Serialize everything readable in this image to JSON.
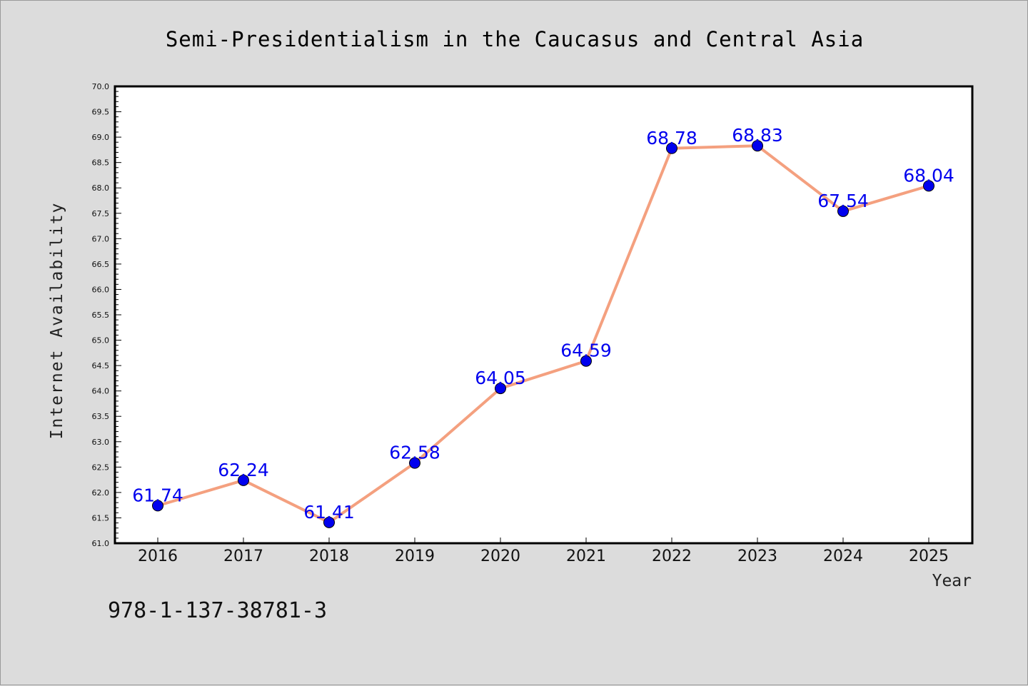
{
  "chart_data": {
    "type": "line",
    "title": "Semi-Presidentialism in the Caucasus and Central Asia",
    "xlabel": "Year",
    "ylabel": "Internet Availability",
    "categories": [
      "2016",
      "2017",
      "2018",
      "2019",
      "2020",
      "2021",
      "2022",
      "2023",
      "2024",
      "2025"
    ],
    "series": [
      {
        "values": [
          61.74,
          62.24,
          61.41,
          62.58,
          64.05,
          64.59,
          68.78,
          68.83,
          67.54,
          68.04
        ],
        "labels": [
          "61.74",
          "62.24",
          "61.41",
          "62.58",
          "64.05",
          "64.59",
          "68.78",
          "68.83",
          "67.54",
          "68.04"
        ],
        "line_color": "#f4a07f",
        "marker_color": "#0000ee"
      }
    ],
    "ylim": [
      61.0,
      70.0
    ],
    "yticks": [
      "61.0",
      "61.5",
      "62.0",
      "62.5",
      "63.0",
      "63.5",
      "64.0",
      "64.5",
      "65.0",
      "65.5",
      "66.0",
      "66.5",
      "67.0",
      "67.5",
      "68.0",
      "68.5",
      "69.0",
      "69.5",
      "70.0"
    ],
    "grid": false,
    "legend": "none",
    "annotation": "978-1-137-38781-3"
  }
}
